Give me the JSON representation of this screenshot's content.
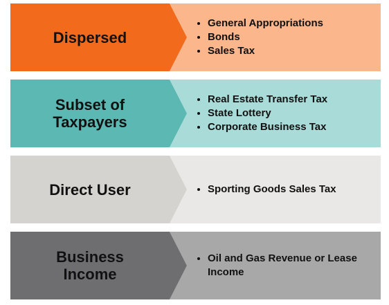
{
  "rows": [
    {
      "category": "Dispersed",
      "items": [
        "General Appropriations",
        "Bonds",
        "Sales Tax"
      ],
      "color": "#f26b1d",
      "light": "#fbb68b",
      "text": "#111111"
    },
    {
      "category": "Subset of Taxpayers",
      "items": [
        "Real Estate Transfer Tax",
        "State Lottery",
        "Corporate Business Tax"
      ],
      "color": "#5cb8b2",
      "light": "#a9dcd8",
      "text": "#111111"
    },
    {
      "category": "Direct User",
      "items": [
        "Sporting Goods Sales Tax"
      ],
      "color": "#d4d3cf",
      "light": "#e9e8e6",
      "text": "#111111"
    },
    {
      "category": "Business Income",
      "items": [
        "Oil and Gas Revenue or Lease Income"
      ],
      "color": "#6e6e71",
      "light": "#a8a8a9",
      "text": "#111111"
    }
  ]
}
